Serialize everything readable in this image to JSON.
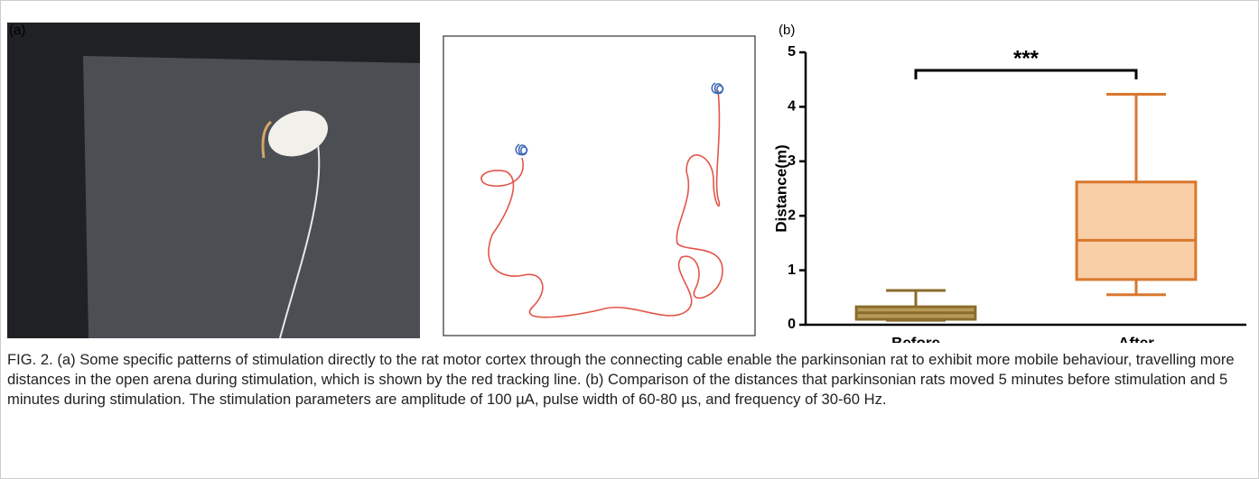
{
  "panel_a": {
    "label": "(a)"
  },
  "chart_data": {
    "type": "box",
    "label": "(b)",
    "ylabel": "Distance(m)",
    "categories": [
      "Before",
      "After"
    ],
    "boxes": [
      {
        "min": 0.08,
        "q1": 0.1,
        "median": 0.22,
        "q3": 0.33,
        "max": 0.63,
        "color": "#b89a58",
        "edge": "#8a6d2b"
      },
      {
        "min": 0.55,
        "q1": 0.83,
        "median": 1.55,
        "q3": 2.62,
        "max": 4.23,
        "color": "#f9cfa8",
        "edge": "#d9772d"
      }
    ],
    "ylim": [
      0,
      5
    ],
    "yticks": [
      0,
      1,
      2,
      3,
      4,
      5
    ],
    "significance": "***"
  },
  "caption": "FIG. 2.  (a) Some specific patterns of stimulation directly to the rat motor cortex through the connecting cable enable the parkinsonian rat to exhibit more mobile behaviour, travelling more distances in the open arena during stimulation, which is shown by the red tracking line. (b) Comparison of the distances that parkinsonian rats moved 5 minutes before stimulation and 5 minutes during stimulation. The stimulation parameters are amplitude of 100 µA, pulse width of 60-80 µs, and frequency of 30-60 Hz."
}
